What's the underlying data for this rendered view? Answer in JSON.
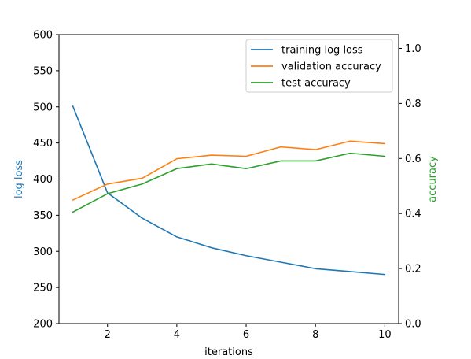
{
  "chart_data": {
    "type": "line",
    "title": "",
    "xlabel": "iterations",
    "ylabel_left": "log loss",
    "ylabel_right": "accuracy",
    "xlim": [
      0.6,
      10.4
    ],
    "ylim_left": [
      200,
      600
    ],
    "ylim_right": [
      0.0,
      1.05
    ],
    "x_ticks": [
      2,
      4,
      6,
      8,
      10
    ],
    "y_left_ticks": [
      200,
      250,
      300,
      350,
      400,
      450,
      500,
      550,
      600
    ],
    "y_right_ticks": [
      0.0,
      0.2,
      0.4,
      0.6,
      0.8,
      1.0
    ],
    "x_tick_labels": [
      "2",
      "4",
      "6",
      "8",
      "10"
    ],
    "y_left_tick_labels": [
      "200",
      "250",
      "300",
      "350",
      "400",
      "450",
      "500",
      "550",
      "600"
    ],
    "y_right_tick_labels": [
      "0.0",
      "0.2",
      "0.4",
      "0.6",
      "0.8",
      "1.0"
    ],
    "x": [
      1,
      2,
      3,
      4,
      5,
      6,
      7,
      8,
      9,
      10
    ],
    "series": [
      {
        "name": "training log loss",
        "axis": "left",
        "color": "#1f77b4",
        "values": [
          501,
          381,
          346,
          320,
          305,
          294,
          285,
          276,
          272,
          268
        ]
      },
      {
        "name": "validation accuracy",
        "axis": "right",
        "color": "#ff7f0e",
        "values": [
          0.449,
          0.507,
          0.528,
          0.599,
          0.612,
          0.608,
          0.642,
          0.632,
          0.663,
          0.654
        ]
      },
      {
        "name": "test accuracy",
        "axis": "right",
        "color": "#2ca02c",
        "values": [
          0.405,
          0.472,
          0.507,
          0.563,
          0.58,
          0.563,
          0.591,
          0.591,
          0.619,
          0.608
        ]
      }
    ],
    "legend": "top-right",
    "grid": false,
    "label_colors": {
      "ylabel_left": "#1f77b4",
      "ylabel_right": "#2ca02c"
    }
  }
}
